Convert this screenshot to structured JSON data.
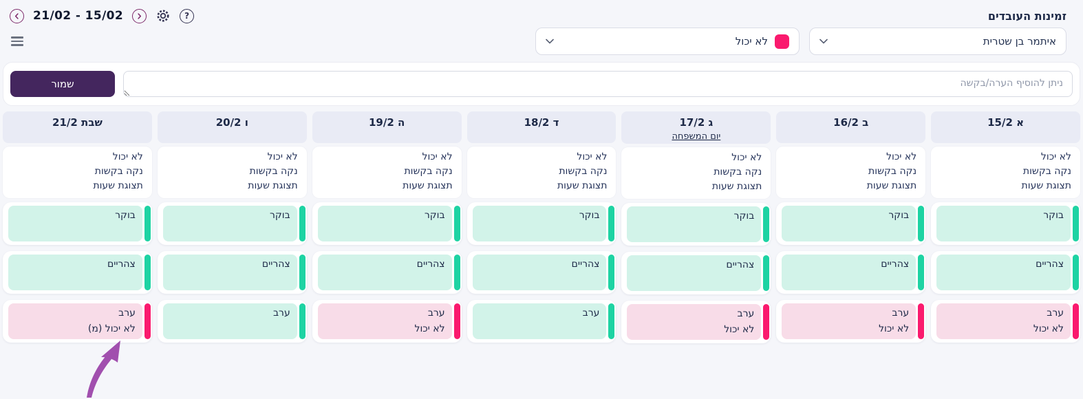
{
  "colors": {
    "accent_purple": "#44265e",
    "header_bg": "#e9ebf5",
    "available_bg": "#d2f3e9",
    "available_bar": "#1ed3a3",
    "unavailable_bg": "#f8dce8",
    "unavailable_bar": "#fa1a6e",
    "icon_purple": "#7d2a6a",
    "annotation_purple": "#a14fae"
  },
  "header": {
    "title": "זמינות העובדים",
    "date_range": "21/02 - 15/02",
    "help_glyph": "?"
  },
  "filters": {
    "employee_select_value": "איתמר בן שטרית",
    "status_select_value": "לא יכול"
  },
  "note_panel": {
    "save_label": "שמור",
    "note_value": "",
    "note_placeholder": "ניתן להוסיף הערה/בקשה"
  },
  "calendar": {
    "column_actions": [
      "לא יכול",
      "נקה בקשות",
      "תצוגת שעות"
    ],
    "days": [
      {
        "label": "א 15/2",
        "note": "",
        "slots": [
          {
            "label": "בוקר",
            "status": "available",
            "status_text": ""
          },
          {
            "label": "צהריים",
            "status": "available",
            "status_text": ""
          },
          {
            "label": "ערב",
            "status": "unavailable",
            "status_text": "לא יכול"
          }
        ]
      },
      {
        "label": "ב 16/2",
        "note": "",
        "slots": [
          {
            "label": "בוקר",
            "status": "available",
            "status_text": ""
          },
          {
            "label": "צהריים",
            "status": "available",
            "status_text": ""
          },
          {
            "label": "ערב",
            "status": "unavailable",
            "status_text": "לא יכול"
          }
        ]
      },
      {
        "label": "ג 17/2",
        "note": "יום המשפחה",
        "slots": [
          {
            "label": "בוקר",
            "status": "available",
            "status_text": ""
          },
          {
            "label": "צהריים",
            "status": "available",
            "status_text": ""
          },
          {
            "label": "ערב",
            "status": "unavailable",
            "status_text": "לא יכול"
          }
        ]
      },
      {
        "label": "ד 18/2",
        "note": "",
        "slots": [
          {
            "label": "בוקר",
            "status": "available",
            "status_text": ""
          },
          {
            "label": "צהריים",
            "status": "available",
            "status_text": ""
          },
          {
            "label": "ערב",
            "status": "available",
            "status_text": ""
          }
        ]
      },
      {
        "label": "ה 19/2",
        "note": "",
        "slots": [
          {
            "label": "בוקר",
            "status": "available",
            "status_text": ""
          },
          {
            "label": "צהריים",
            "status": "available",
            "status_text": ""
          },
          {
            "label": "ערב",
            "status": "unavailable",
            "status_text": "לא יכול"
          }
        ]
      },
      {
        "label": "ו 20/2",
        "note": "",
        "slots": [
          {
            "label": "בוקר",
            "status": "available",
            "status_text": ""
          },
          {
            "label": "צהריים",
            "status": "available",
            "status_text": ""
          },
          {
            "label": "ערב",
            "status": "available",
            "status_text": ""
          }
        ]
      },
      {
        "label": "שבת 21/2",
        "note": "",
        "slots": [
          {
            "label": "בוקר",
            "status": "available",
            "status_text": ""
          },
          {
            "label": "צהריים",
            "status": "available",
            "status_text": ""
          },
          {
            "label": "ערב",
            "status": "unavailable",
            "status_text": "לא יכול (מ)"
          }
        ]
      }
    ]
  }
}
